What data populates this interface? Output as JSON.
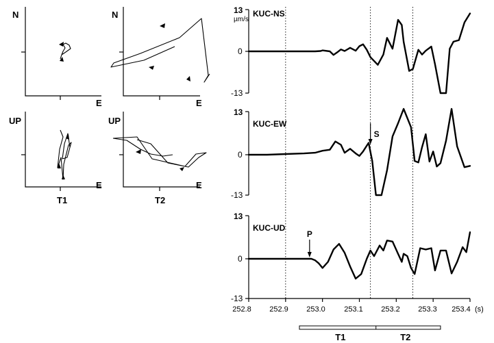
{
  "chart_data": [
    {
      "type": "line",
      "name": "KUC-NS",
      "unit": "µm/s",
      "yticks": [
        "13",
        "0",
        "-13"
      ],
      "ylim": [
        -13,
        13
      ],
      "xlim": [
        252.8,
        253.4
      ],
      "x": [
        252.8,
        252.85,
        252.9,
        252.95,
        252.98,
        252.995,
        253.0,
        253.02,
        253.03,
        253.04,
        253.05,
        253.06,
        253.075,
        253.09,
        253.1,
        253.11,
        253.12,
        253.13,
        253.15,
        253.165,
        253.175,
        253.19,
        253.205,
        253.215,
        253.22,
        253.235,
        253.245,
        253.26,
        253.27,
        253.28,
        253.295,
        253.305,
        253.32,
        253.335,
        253.345,
        253.355,
        253.37,
        253.385,
        253.4
      ],
      "y": [
        0,
        0,
        0,
        0,
        0,
        0.1,
        0.3,
        0,
        -1.1,
        -0.3,
        0.6,
        0.1,
        1.1,
        0.2,
        1.6,
        2.2,
        0.5,
        -1.8,
        -4.2,
        -1,
        4.2,
        0.8,
        9.8,
        8.2,
        3,
        -6.1,
        -5.5,
        0.5,
        -1,
        0.2,
        1.5,
        -4,
        -14,
        -14,
        0.8,
        3,
        3.5,
        9,
        11.8
      ]
    },
    {
      "type": "line",
      "name": "KUC-EW",
      "yticks": [
        "13",
        "0",
        "-13"
      ],
      "ylim": [
        -13,
        13
      ],
      "xlim": [
        252.8,
        253.4
      ],
      "x": [
        252.8,
        252.85,
        252.9,
        252.95,
        252.98,
        253.0,
        253.02,
        253.035,
        253.05,
        253.06,
        253.075,
        253.09,
        253.1,
        253.11,
        253.125,
        253.135,
        253.145,
        253.16,
        253.175,
        253.19,
        253.205,
        253.22,
        253.24,
        253.25,
        253.26,
        253.27,
        253.28,
        253.29,
        253.3,
        253.31,
        253.32,
        253.335,
        253.35,
        253.365,
        253.385,
        253.4
      ],
      "y": [
        0,
        0,
        0.2,
        0.4,
        0.6,
        1.2,
        1.5,
        4,
        3,
        0.6,
        1.8,
        0.4,
        -0.4,
        1,
        3.6,
        -2,
        -14,
        -14,
        -5,
        5.5,
        9.5,
        14,
        8.3,
        -2,
        -2.5,
        2.3,
        6.2,
        -2.2,
        1,
        -3.8,
        -2.7,
        4.2,
        14,
        2.5,
        -4,
        -3.6
      ],
      "annotations": [
        {
          "label": "S",
          "x": 253.13
        }
      ]
    },
    {
      "type": "line",
      "name": "KUC-UD",
      "yticks": [
        "13",
        "0",
        "-13"
      ],
      "ylim": [
        -13,
        13
      ],
      "xlim": [
        252.8,
        253.4
      ],
      "x": [
        252.8,
        252.85,
        252.9,
        252.95,
        252.97,
        252.98,
        252.99,
        253.0,
        253.015,
        253.03,
        253.045,
        253.06,
        253.075,
        253.09,
        253.105,
        253.12,
        253.13,
        253.14,
        253.155,
        253.165,
        253.175,
        253.19,
        253.205,
        253.215,
        253.22,
        253.23,
        253.24,
        253.25,
        253.265,
        253.28,
        253.295,
        253.305,
        253.32,
        253.335,
        253.35,
        253.365,
        253.38,
        253.39,
        253.4
      ],
      "y": [
        0,
        0,
        0,
        0,
        0,
        -0.5,
        -1.5,
        -3,
        -1,
        2.8,
        4.5,
        1.8,
        -2.5,
        -6.5,
        -5,
        0,
        2.5,
        0.8,
        4,
        2.5,
        5.5,
        5.2,
        1.5,
        -1,
        1.5,
        0.8,
        -3,
        -5,
        3.2,
        2.8,
        3.2,
        -3.8,
        2.5,
        2.5,
        -4.8,
        -1,
        3.5,
        2,
        8
      ]
    },
    {
      "type": "scatter",
      "name": "particle-motion",
      "row_labels": [
        {
          "y": "N",
          "x": "E"
        },
        {
          "y": "UP",
          "x": "E"
        }
      ],
      "window_labels": [
        "T1",
        "T2"
      ]
    }
  ],
  "xaxis": {
    "ticks": [
      "252.8",
      "252.9",
      "253.0",
      "253.1",
      "253.2",
      "253.3",
      "253.4"
    ],
    "unit": "(s)"
  },
  "windows": {
    "T1": [
      252.8,
      253.1
    ],
    "T2": [
      253.1,
      253.3
    ],
    "markers": [
      252.9,
      253.13,
      253.245
    ]
  },
  "labels": {
    "unit": "µm/s",
    "ns_title": "KUC-NS",
    "ew_title": "KUC-EW",
    "ud_title": "KUC-UD",
    "p_label": "P",
    "s_label": "S",
    "t1": "T1",
    "t2": "T2",
    "n": "N",
    "up": "UP",
    "e": "E",
    "tick_top": "13",
    "tick_zero": "0",
    "tick_bottom": "-13",
    "x_unit": "(s)",
    "x0": "252.8",
    "x1": "252.9",
    "x2": "253.0",
    "x3": "253.1",
    "x4": "253.2",
    "x5": "253.3",
    "x6": "253.4"
  }
}
